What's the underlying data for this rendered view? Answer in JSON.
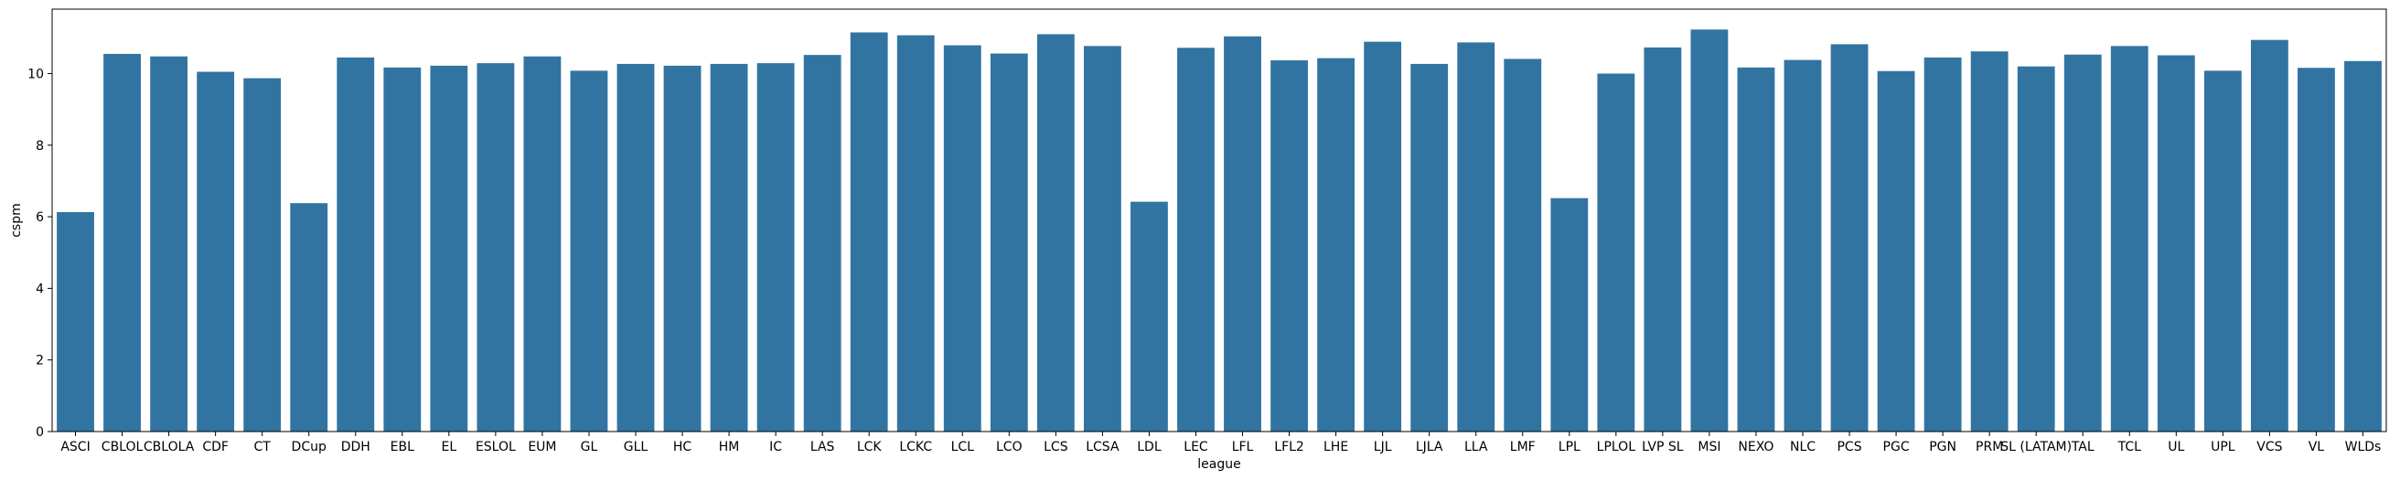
{
  "chart_data": {
    "type": "bar",
    "xlabel": "league",
    "ylabel": "cspm",
    "ylim": [
      0,
      11.8
    ],
    "yticks": [
      0,
      2,
      4,
      6,
      8,
      10
    ],
    "grid": false,
    "legend": "none",
    "bar_color": "#3274a1",
    "categories": [
      "ASCI",
      "CBLOL",
      "CBLOLA",
      "CDF",
      "CT",
      "DCup",
      "DDH",
      "EBL",
      "EL",
      "ESLOL",
      "EUM",
      "GL",
      "GLL",
      "HC",
      "HM",
      "IC",
      "LAS",
      "LCK",
      "LCKC",
      "LCL",
      "LCO",
      "LCS",
      "LCSA",
      "LDL",
      "LEC",
      "LFL",
      "LFL2",
      "LHE",
      "LJL",
      "LJLA",
      "LLA",
      "LMF",
      "LPL",
      "LPLOL",
      "LVP SL",
      "MSI",
      "NEXO",
      "NLC",
      "PCS",
      "PGC",
      "PGN",
      "PRM",
      "SL (LATAM)",
      "TAL",
      "TCL",
      "UL",
      "UPL",
      "VCS",
      "VL",
      "WLDs"
    ],
    "values": [
      6.13,
      10.55,
      10.48,
      10.05,
      9.87,
      6.38,
      10.45,
      10.17,
      10.22,
      10.29,
      10.48,
      10.08,
      10.27,
      10.22,
      10.27,
      10.29,
      10.52,
      11.15,
      11.07,
      10.79,
      10.56,
      11.1,
      10.77,
      6.42,
      10.72,
      11.04,
      10.37,
      10.43,
      10.89,
      10.27,
      10.87,
      10.41,
      6.52,
      10.0,
      10.73,
      11.23,
      10.17,
      10.38,
      10.82,
      10.07,
      10.45,
      10.62,
      10.2,
      10.53,
      10.77,
      10.51,
      10.08,
      10.94,
      10.16,
      10.35
    ]
  }
}
